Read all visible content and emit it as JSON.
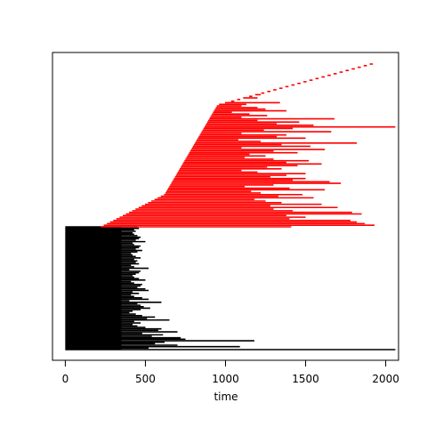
{
  "chart_data": {
    "type": "line",
    "description_kind": "horizontal segment plot (start to end per row)",
    "title": "",
    "xlabel": "time",
    "ylabel": "",
    "xlim": [
      -80,
      2080
    ],
    "x_ticks": [
      0,
      500,
      1000,
      1500,
      2000
    ],
    "grid": false,
    "legend": null,
    "series": [
      {
        "color": "#000000",
        "rows": 84,
        "start_values": [
          0,
          0,
          0,
          0,
          0,
          0,
          0
        ],
        "end_values": [
          2060,
          520,
          1090,
          700,
          560,
          620,
          1180,
          750,
          720,
          540,
          610,
          480,
          700,
          580,
          600,
          500,
          450,
          420,
          470,
          430,
          650,
          510,
          560,
          480,
          440,
          400,
          420,
          470,
          530,
          490,
          470,
          450,
          600,
          400,
          520,
          480,
          430,
          410,
          460,
          420,
          520,
          500,
          450,
          470,
          480,
          430,
          410,
          500,
          460,
          430,
          420,
          440,
          460,
          470,
          400,
          520,
          430,
          410,
          460,
          440,
          450,
          430,
          470,
          440,
          420,
          410,
          450,
          480,
          440,
          460,
          470,
          430,
          420,
          500,
          440,
          460,
          470,
          450,
          430,
          420,
          440,
          430,
          460,
          450
        ]
      },
      {
        "color": "#ff0000",
        "rows": 102,
        "start_values": [
          220,
          2080
        ],
        "end_values": [
          1410,
          1930,
          1870,
          1820,
          1780,
          1400,
          1500,
          1380,
          1850,
          1790,
          1420,
          1300,
          1700,
          1280,
          1600,
          1350,
          1250,
          1180,
          1550,
          1330,
          1480,
          1220,
          1160,
          1620,
          1400,
          1120,
          1300,
          1720,
          1650,
          1420,
          1500,
          1280,
          1380,
          1500,
          1200,
          1100,
          1350,
          1260,
          1450,
          1600,
          1380,
          1520,
          1300,
          1120,
          1250,
          1150,
          1450,
          1300,
          1620,
          1100,
          1530,
          1350,
          1820,
          1220,
          1080,
          1500,
          1320,
          1380,
          1100,
          1660,
          1240,
          1420,
          2060,
          1550,
          1320,
          1460,
          1200,
          1680,
          1100,
          1260,
          1150,
          1040,
          1380,
          1250,
          1200,
          1100,
          1130,
          1340,
          1020,
          980,
          1200,
          1090,
          1220,
          1150,
          1000,
          950,
          1120,
          980,
          1050,
          920,
          1020,
          1150,
          1380,
          1000,
          940,
          1080,
          1230,
          900,
          860,
          1200,
          1370,
          1120
        ]
      }
    ]
  }
}
